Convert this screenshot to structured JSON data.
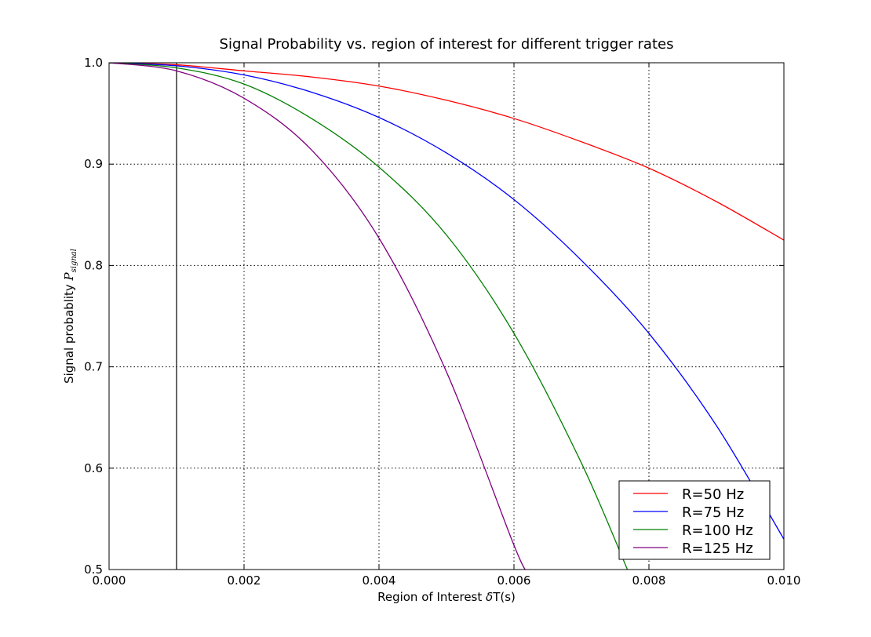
{
  "chart_data": {
    "type": "line",
    "title": "Signal Probability vs. region of interest for different trigger rates",
    "xlabel_prefix": "Region of Interest ",
    "xlabel_symbol": "δ",
    "xlabel_suffix": "T(s)",
    "ylabel_prefix": "Signal probablity ",
    "ylabel_symbol": "P",
    "ylabel_subscript": "signal",
    "xlim": [
      0.0,
      0.01
    ],
    "ylim": [
      0.5,
      1.0
    ],
    "xticks": [
      "0.000",
      "0.002",
      "0.004",
      "0.006",
      "0.008",
      "0.010"
    ],
    "yticks": [
      "0.5",
      "0.6",
      "0.7",
      "0.8",
      "0.9",
      "1.0"
    ],
    "grid": true,
    "legend_position": "lower-right",
    "vertical_line_x": 0.001,
    "vertical_line_color": "#000000",
    "series": [
      {
        "name": "R=50 Hz",
        "color": "#ff0000",
        "x": [
          0.0,
          0.001,
          0.002,
          0.003,
          0.004,
          0.005,
          0.006,
          0.007,
          0.008,
          0.009,
          0.01
        ],
        "y": [
          1.0,
          0.998,
          0.992,
          0.986,
          0.977,
          0.963,
          0.945,
          0.922,
          0.896,
          0.863,
          0.825
        ]
      },
      {
        "name": "R=75 Hz",
        "color": "#0000ff",
        "x": [
          0.0,
          0.001,
          0.002,
          0.003,
          0.004,
          0.005,
          0.006,
          0.007,
          0.008,
          0.009,
          0.01
        ],
        "y": [
          1.0,
          0.997,
          0.988,
          0.971,
          0.946,
          0.911,
          0.865,
          0.805,
          0.733,
          0.642,
          0.53
        ]
      },
      {
        "name": "R=100 Hz",
        "color": "#008000",
        "x": [
          0.0,
          0.001,
          0.002,
          0.003,
          0.004,
          0.005,
          0.006,
          0.007,
          0.0077
        ],
        "y": [
          1.0,
          0.995,
          0.979,
          0.945,
          0.897,
          0.83,
          0.733,
          0.605,
          0.497
        ]
      },
      {
        "name": "R=125 Hz",
        "color": "#800080",
        "x": [
          0.0,
          0.001,
          0.002,
          0.003,
          0.004,
          0.005,
          0.006,
          0.0062
        ],
        "y": [
          1.0,
          0.992,
          0.965,
          0.914,
          0.827,
          0.695,
          0.524,
          0.498
        ]
      }
    ]
  }
}
